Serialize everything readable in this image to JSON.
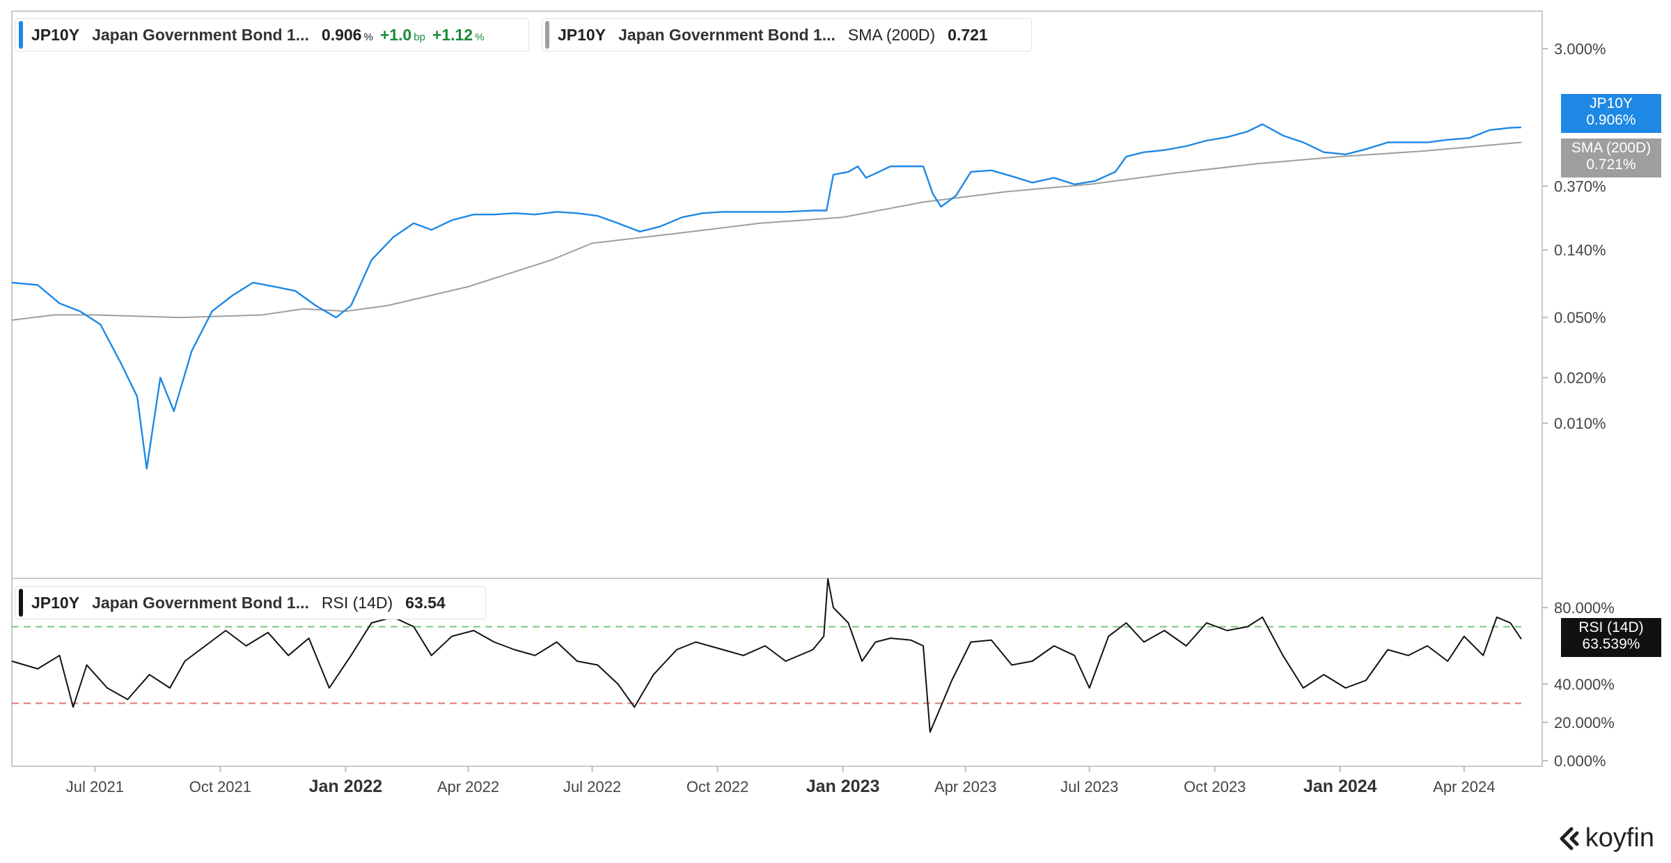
{
  "legend": {
    "main": {
      "symbol": "JP10Y",
      "name": "Japan Government Bond 1...",
      "value": "0.906",
      "value_unit": "%",
      "change": "+1.0",
      "change_unit": "bp",
      "change_pct": "+1.12",
      "change_pct_unit": "%",
      "color": "#1e88e5"
    },
    "sma": {
      "symbol": "JP10Y",
      "name": "Japan Government Bond 1...",
      "indicator": "SMA (200D)",
      "value": "0.721",
      "color": "#9e9e9e"
    },
    "rsi": {
      "symbol": "JP10Y",
      "name": "Japan Government Bond 1...",
      "indicator": "RSI (14D)",
      "value": "63.54",
      "color": "#111111"
    }
  },
  "tags": {
    "price": {
      "line1": "JP10Y",
      "line2": "0.906%",
      "color": "#1e88e5"
    },
    "sma": {
      "line1": "SMA (200D)",
      "line2": "0.721%",
      "color": "#9e9e9e"
    },
    "rsi": {
      "line1": "RSI (14D)",
      "line2": "63.539%",
      "color": "#111111"
    }
  },
  "branding": {
    "name": "koyfin"
  },
  "chart_data": [
    {
      "type": "line",
      "y_scale": "log",
      "y_tick_labels": [
        "3.000%",
        "0.370%",
        "0.140%",
        "0.050%",
        "0.020%",
        "0.010%"
      ],
      "y_tick_values": [
        3.0,
        0.37,
        0.14,
        0.05,
        0.02,
        0.01
      ],
      "x_tick_labels": [
        "Jul 2021",
        "Oct 2021",
        "Jan 2022",
        "Apr 2022",
        "Jul 2022",
        "Oct 2022",
        "Jan 2023",
        "Apr 2023",
        "Jul 2023",
        "Oct 2023",
        "Jan 2024",
        "Apr 2024"
      ],
      "x_tick_years": [
        false,
        false,
        true,
        false,
        false,
        false,
        true,
        false,
        false,
        false,
        true,
        false
      ],
      "series": [
        {
          "name": "JP10Y",
          "color": "#1e88e5",
          "points": [
            [
              "2021-05-01",
              0.085
            ],
            [
              "2021-05-20",
              0.082
            ],
            [
              "2021-06-05",
              0.062
            ],
            [
              "2021-06-20",
              0.055
            ],
            [
              "2021-07-05",
              0.045
            ],
            [
              "2021-07-20",
              0.025
            ],
            [
              "2021-08-01",
              0.015
            ],
            [
              "2021-08-08",
              0.005
            ],
            [
              "2021-08-18",
              0.02
            ],
            [
              "2021-08-28",
              0.012
            ],
            [
              "2021-09-10",
              0.03
            ],
            [
              "2021-09-25",
              0.055
            ],
            [
              "2021-10-10",
              0.07
            ],
            [
              "2021-10-25",
              0.085
            ],
            [
              "2021-11-10",
              0.08
            ],
            [
              "2021-11-25",
              0.075
            ],
            [
              "2021-12-10",
              0.06
            ],
            [
              "2021-12-25",
              0.05
            ],
            [
              "2022-01-05",
              0.06
            ],
            [
              "2022-01-20",
              0.12
            ],
            [
              "2022-02-05",
              0.17
            ],
            [
              "2022-02-20",
              0.21
            ],
            [
              "2022-03-05",
              0.19
            ],
            [
              "2022-03-20",
              0.22
            ],
            [
              "2022-04-05",
              0.24
            ],
            [
              "2022-04-20",
              0.24
            ],
            [
              "2022-05-05",
              0.245
            ],
            [
              "2022-05-20",
              0.24
            ],
            [
              "2022-06-05",
              0.25
            ],
            [
              "2022-06-20",
              0.245
            ],
            [
              "2022-07-05",
              0.235
            ],
            [
              "2022-07-20",
              0.21
            ],
            [
              "2022-08-05",
              0.185
            ],
            [
              "2022-08-20",
              0.2
            ],
            [
              "2022-09-05",
              0.23
            ],
            [
              "2022-09-20",
              0.245
            ],
            [
              "2022-10-05",
              0.25
            ],
            [
              "2022-10-20",
              0.25
            ],
            [
              "2022-11-05",
              0.25
            ],
            [
              "2022-11-20",
              0.25
            ],
            [
              "2022-12-10",
              0.255
            ],
            [
              "2022-12-20",
              0.255
            ],
            [
              "2022-12-25",
              0.44
            ],
            [
              "2023-01-05",
              0.46
            ],
            [
              "2023-01-12",
              0.5
            ],
            [
              "2023-01-18",
              0.42
            ],
            [
              "2023-02-05",
              0.5
            ],
            [
              "2023-02-20",
              0.5
            ],
            [
              "2023-03-01",
              0.5
            ],
            [
              "2023-03-08",
              0.33
            ],
            [
              "2023-03-14",
              0.27
            ],
            [
              "2023-03-25",
              0.32
            ],
            [
              "2023-04-05",
              0.46
            ],
            [
              "2023-04-20",
              0.47
            ],
            [
              "2023-05-05",
              0.43
            ],
            [
              "2023-05-20",
              0.39
            ],
            [
              "2023-06-05",
              0.42
            ],
            [
              "2023-06-20",
              0.38
            ],
            [
              "2023-07-05",
              0.4
            ],
            [
              "2023-07-20",
              0.46
            ],
            [
              "2023-07-28",
              0.58
            ],
            [
              "2023-08-10",
              0.62
            ],
            [
              "2023-08-25",
              0.64
            ],
            [
              "2023-09-10",
              0.68
            ],
            [
              "2023-09-25",
              0.74
            ],
            [
              "2023-10-10",
              0.78
            ],
            [
              "2023-10-25",
              0.85
            ],
            [
              "2023-11-05",
              0.95
            ],
            [
              "2023-11-20",
              0.8
            ],
            [
              "2023-12-05",
              0.72
            ],
            [
              "2023-12-20",
              0.62
            ],
            [
              "2024-01-05",
              0.6
            ],
            [
              "2024-01-20",
              0.65
            ],
            [
              "2024-02-05",
              0.72
            ],
            [
              "2024-02-20",
              0.72
            ],
            [
              "2024-03-05",
              0.72
            ],
            [
              "2024-03-20",
              0.75
            ],
            [
              "2024-04-05",
              0.77
            ],
            [
              "2024-04-20",
              0.87
            ],
            [
              "2024-05-05",
              0.9
            ],
            [
              "2024-05-13",
              0.906
            ]
          ]
        },
        {
          "name": "SMA (200D)",
          "color": "#9e9e9e",
          "points": [
            [
              "2021-05-01",
              0.048
            ],
            [
              "2021-06-01",
              0.052
            ],
            [
              "2021-07-01",
              0.052
            ],
            [
              "2021-09-01",
              0.05
            ],
            [
              "2021-11-01",
              0.052
            ],
            [
              "2021-12-01",
              0.057
            ],
            [
              "2022-01-01",
              0.055
            ],
            [
              "2022-02-01",
              0.06
            ],
            [
              "2022-04-01",
              0.08
            ],
            [
              "2022-06-01",
              0.12
            ],
            [
              "2022-07-01",
              0.155
            ],
            [
              "2022-09-01",
              0.18
            ],
            [
              "2022-11-01",
              0.21
            ],
            [
              "2023-01-01",
              0.23
            ],
            [
              "2023-03-01",
              0.29
            ],
            [
              "2023-05-01",
              0.34
            ],
            [
              "2023-07-01",
              0.38
            ],
            [
              "2023-09-01",
              0.45
            ],
            [
              "2023-11-01",
              0.52
            ],
            [
              "2024-01-01",
              0.58
            ],
            [
              "2024-03-01",
              0.63
            ],
            [
              "2024-05-13",
              0.721
            ]
          ]
        }
      ]
    },
    {
      "type": "line",
      "y_tick_labels": [
        "80.000%",
        "40.000%",
        "20.000%",
        "0.000%"
      ],
      "y_tick_values": [
        80,
        40,
        20,
        0
      ],
      "reference_lines": [
        {
          "value": 70,
          "color": "#7cc67c"
        },
        {
          "value": 30,
          "color": "#e57373"
        }
      ],
      "series": [
        {
          "name": "RSI (14D)",
          "color": "#111111",
          "points": [
            [
              "2021-05-01",
              52
            ],
            [
              "2021-05-20",
              48
            ],
            [
              "2021-06-05",
              55
            ],
            [
              "2021-06-15",
              28
            ],
            [
              "2021-06-25",
              50
            ],
            [
              "2021-07-10",
              38
            ],
            [
              "2021-07-25",
              32
            ],
            [
              "2021-08-10",
              45
            ],
            [
              "2021-08-25",
              38
            ],
            [
              "2021-09-05",
              52
            ],
            [
              "2021-09-20",
              60
            ],
            [
              "2021-10-05",
              68
            ],
            [
              "2021-10-20",
              60
            ],
            [
              "2021-11-05",
              67
            ],
            [
              "2021-11-20",
              55
            ],
            [
              "2021-12-05",
              64
            ],
            [
              "2021-12-20",
              38
            ],
            [
              "2022-01-05",
              55
            ],
            [
              "2022-01-20",
              72
            ],
            [
              "2022-02-05",
              75
            ],
            [
              "2022-02-20",
              70
            ],
            [
              "2022-03-05",
              55
            ],
            [
              "2022-03-20",
              65
            ],
            [
              "2022-04-05",
              68
            ],
            [
              "2022-04-20",
              62
            ],
            [
              "2022-05-05",
              58
            ],
            [
              "2022-05-20",
              55
            ],
            [
              "2022-06-05",
              62
            ],
            [
              "2022-06-20",
              52
            ],
            [
              "2022-07-05",
              50
            ],
            [
              "2022-07-20",
              40
            ],
            [
              "2022-08-01",
              28
            ],
            [
              "2022-08-15",
              45
            ],
            [
              "2022-09-01",
              58
            ],
            [
              "2022-09-15",
              62
            ],
            [
              "2022-10-05",
              58
            ],
            [
              "2022-10-20",
              55
            ],
            [
              "2022-11-05",
              60
            ],
            [
              "2022-11-20",
              52
            ],
            [
              "2022-12-10",
              58
            ],
            [
              "2022-12-18",
              65
            ],
            [
              "2022-12-21",
              95
            ],
            [
              "2022-12-25",
              80
            ],
            [
              "2023-01-05",
              72
            ],
            [
              "2023-01-15",
              52
            ],
            [
              "2023-01-25",
              62
            ],
            [
              "2023-02-05",
              64
            ],
            [
              "2023-02-20",
              63
            ],
            [
              "2023-03-01",
              60
            ],
            [
              "2023-03-06",
              15
            ],
            [
              "2023-03-12",
              25
            ],
            [
              "2023-03-22",
              42
            ],
            [
              "2023-04-05",
              62
            ],
            [
              "2023-04-20",
              63
            ],
            [
              "2023-05-05",
              50
            ],
            [
              "2023-05-20",
              52
            ],
            [
              "2023-06-05",
              60
            ],
            [
              "2023-06-20",
              55
            ],
            [
              "2023-07-01",
              38
            ],
            [
              "2023-07-15",
              65
            ],
            [
              "2023-07-28",
              72
            ],
            [
              "2023-08-10",
              62
            ],
            [
              "2023-08-25",
              68
            ],
            [
              "2023-09-10",
              60
            ],
            [
              "2023-09-25",
              72
            ],
            [
              "2023-10-10",
              68
            ],
            [
              "2023-10-25",
              70
            ],
            [
              "2023-11-05",
              75
            ],
            [
              "2023-11-20",
              55
            ],
            [
              "2023-12-05",
              38
            ],
            [
              "2023-12-20",
              45
            ],
            [
              "2024-01-05",
              38
            ],
            [
              "2024-01-20",
              42
            ],
            [
              "2024-02-05",
              58
            ],
            [
              "2024-02-20",
              55
            ],
            [
              "2024-03-05",
              60
            ],
            [
              "2024-03-20",
              52
            ],
            [
              "2024-04-01",
              65
            ],
            [
              "2024-04-15",
              55
            ],
            [
              "2024-04-25",
              75
            ],
            [
              "2024-05-05",
              72
            ],
            [
              "2024-05-13",
              63.54
            ]
          ]
        }
      ]
    }
  ]
}
